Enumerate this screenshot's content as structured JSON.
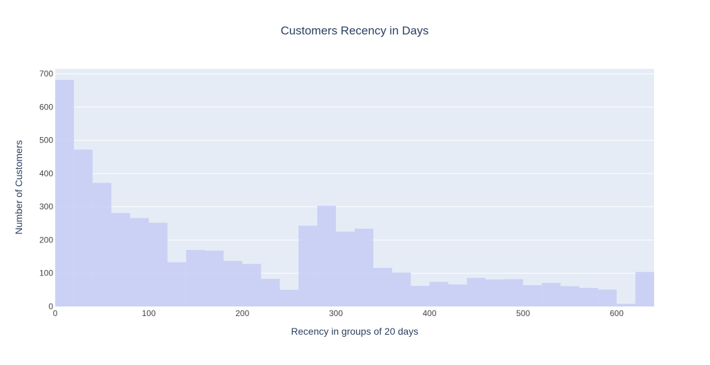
{
  "chart_data": {
    "type": "bar",
    "title": "Customers Recency in Days",
    "xlabel": "Recency in groups of 20 days",
    "ylabel": "Number of Customers",
    "bin_width": 20,
    "bins_start": [
      0,
      20,
      40,
      60,
      80,
      100,
      120,
      140,
      160,
      180,
      200,
      220,
      240,
      260,
      280,
      300,
      320,
      340,
      360,
      380,
      400,
      420,
      440,
      460,
      480,
      500,
      520,
      540,
      560,
      580,
      600,
      620
    ],
    "values": [
      682,
      472,
      372,
      281,
      266,
      252,
      133,
      170,
      168,
      137,
      128,
      83,
      50,
      243,
      303,
      225,
      234,
      116,
      102,
      62,
      74,
      66,
      86,
      81,
      82,
      64,
      71,
      61,
      56,
      51,
      8,
      104
    ],
    "xlim": [
      0,
      640
    ],
    "ylim": [
      0,
      715
    ],
    "x_ticks": [
      0,
      100,
      200,
      300,
      400,
      500,
      600
    ],
    "y_ticks": [
      0,
      100,
      200,
      300,
      400,
      500,
      600,
      700
    ],
    "grid": true,
    "colors": {
      "bar": "#c5cdf5",
      "plot_bg": "#e5ecf6",
      "grid": "#ffffff",
      "text": "#2a3f5f",
      "tick_text": "#444444"
    }
  }
}
